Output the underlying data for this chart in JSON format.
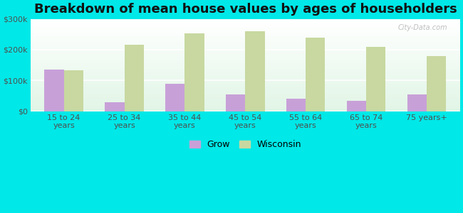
{
  "title": "Breakdown of mean house values by ages of householders",
  "categories": [
    "15 to 24\nyears",
    "25 to 34\nyears",
    "35 to 44\nyears",
    "45 to 54\nyears",
    "55 to 64\nyears",
    "65 to 74\nyears",
    "75 years+"
  ],
  "grow_values": [
    135000,
    30000,
    88000,
    55000,
    40000,
    33000,
    55000
  ],
  "wisconsin_values": [
    133000,
    215000,
    253000,
    260000,
    240000,
    210000,
    178000
  ],
  "grow_color": "#c8a0d8",
  "wisconsin_color": "#c8d8a0",
  "background_color": "#00e8e8",
  "ylim": [
    0,
    300000
  ],
  "yticks": [
    0,
    100000,
    200000,
    300000
  ],
  "ytick_labels": [
    "$0",
    "$100k",
    "$200k",
    "$300k"
  ],
  "legend_labels": [
    "Grow",
    "Wisconsin"
  ],
  "bar_width": 0.32,
  "title_fontsize": 13,
  "tick_fontsize": 8,
  "legend_fontsize": 9,
  "watermark": "City-Data.com"
}
